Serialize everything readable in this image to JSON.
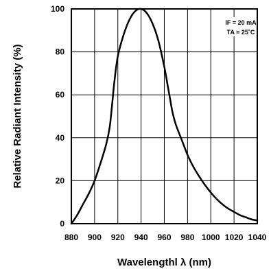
{
  "chart_data": {
    "type": "line",
    "title": "",
    "xlabel": "Wavelengthl λ (nm)",
    "ylabel": "Relative Radiant Intensity (%)",
    "xlim": [
      880,
      1040
    ],
    "ylim": [
      0,
      100
    ],
    "x_ticks": [
      "880",
      "900",
      "920",
      "940",
      "960",
      "980",
      "1000",
      "1020",
      "1040"
    ],
    "y_ticks": [
      "0",
      "20",
      "40",
      "60",
      "80",
      "100"
    ],
    "grid": true,
    "annotations": [
      "IF = 20 mA",
      "TA = 25˚C"
    ],
    "colors": {
      "line": "#000000",
      "grid": "#000000",
      "background": "#ffffff"
    },
    "series": [
      {
        "x": [
          880,
          885,
          890,
          895,
          900,
          905,
          910,
          913,
          915,
          917,
          920,
          925,
          930,
          935,
          940,
          945,
          950,
          955,
          960,
          963,
          965,
          967,
          970,
          975,
          980,
          985,
          990,
          995,
          1000,
          1005,
          1010,
          1015,
          1020,
          1025,
          1030,
          1035,
          1040
        ],
        "y": [
          0,
          4,
          9,
          14,
          20,
          28,
          37,
          45,
          55,
          66,
          78,
          88,
          95,
          99,
          100,
          98,
          93,
          85,
          73,
          64,
          58,
          52,
          46,
          39,
          32,
          26.5,
          22,
          18,
          14.5,
          11.5,
          9,
          7,
          5.5,
          4,
          3,
          2,
          1.5
        ]
      }
    ]
  }
}
